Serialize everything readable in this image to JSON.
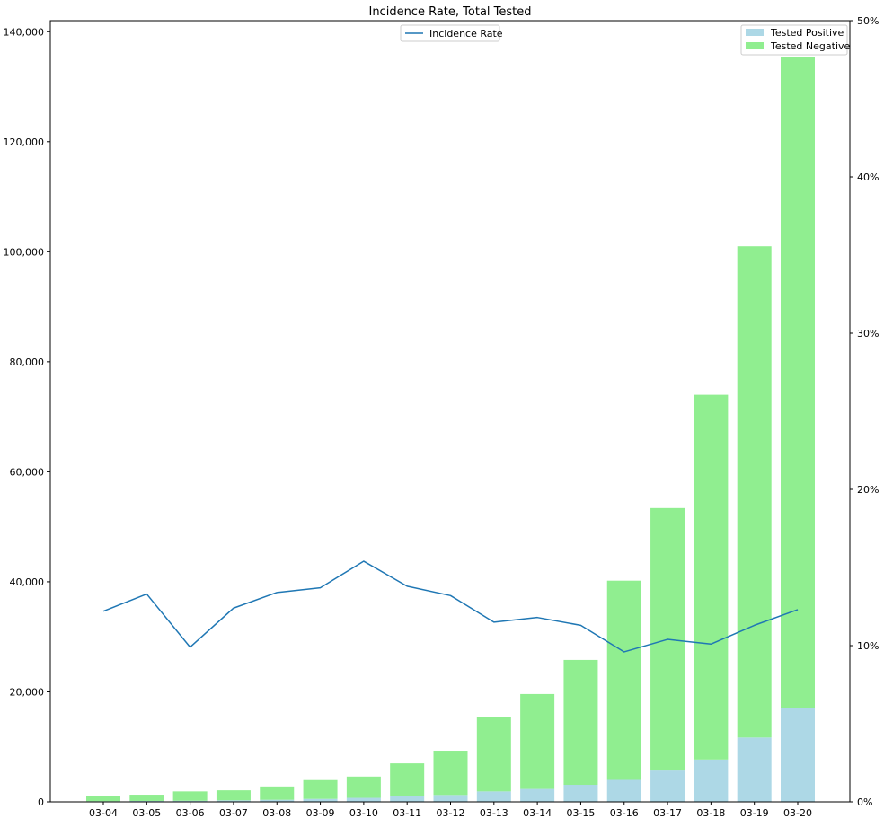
{
  "chart_data": {
    "type": "bar",
    "title": "Incidence Rate, Total Tested",
    "categories": [
      "03-04",
      "03-05",
      "03-06",
      "03-07",
      "03-08",
      "03-09",
      "03-10",
      "03-11",
      "03-12",
      "03-13",
      "03-14",
      "03-15",
      "03-16",
      "03-17",
      "03-18",
      "03-19",
      "03-20"
    ],
    "series": [
      {
        "name": "Tested Positive",
        "color": "#add8e6",
        "values": [
          120,
          170,
          200,
          280,
          380,
          540,
          730,
          1000,
          1250,
          1900,
          2350,
          3100,
          4000,
          5700,
          7700,
          11700,
          17000
        ]
      },
      {
        "name": "Tested Negative",
        "color": "#90ee90",
        "values": [
          880,
          1130,
          1700,
          1820,
          2420,
          3420,
          3870,
          6000,
          8050,
          13600,
          17250,
          22700,
          36200,
          47700,
          66300,
          89300,
          118400
        ]
      }
    ],
    "line_series": {
      "name": "Incidence Rate",
      "color": "#1f77b4",
      "values": [
        0.122,
        0.133,
        0.099,
        0.124,
        0.134,
        0.137,
        0.154,
        0.138,
        0.132,
        0.115,
        0.118,
        0.113,
        0.096,
        0.104,
        0.101,
        0.113,
        0.123
      ]
    },
    "left_axis": {
      "ylim": [
        0,
        142000
      ],
      "ticks": [
        0,
        20000,
        40000,
        60000,
        80000,
        100000,
        120000,
        140000
      ],
      "tick_labels": [
        "0",
        "20,000",
        "40,000",
        "60,000",
        "80,000",
        "100,000",
        "120,000",
        "140,000"
      ]
    },
    "right_axis": {
      "ylim": [
        0,
        0.5
      ],
      "ticks": [
        0,
        0.1,
        0.2,
        0.3,
        0.4,
        0.5
      ],
      "tick_labels": [
        "0%",
        "10%",
        "20%",
        "30%",
        "40%",
        "50%"
      ]
    },
    "legend_bars_location": "upper right",
    "legend_line_location": "upper center",
    "grid": false
  }
}
